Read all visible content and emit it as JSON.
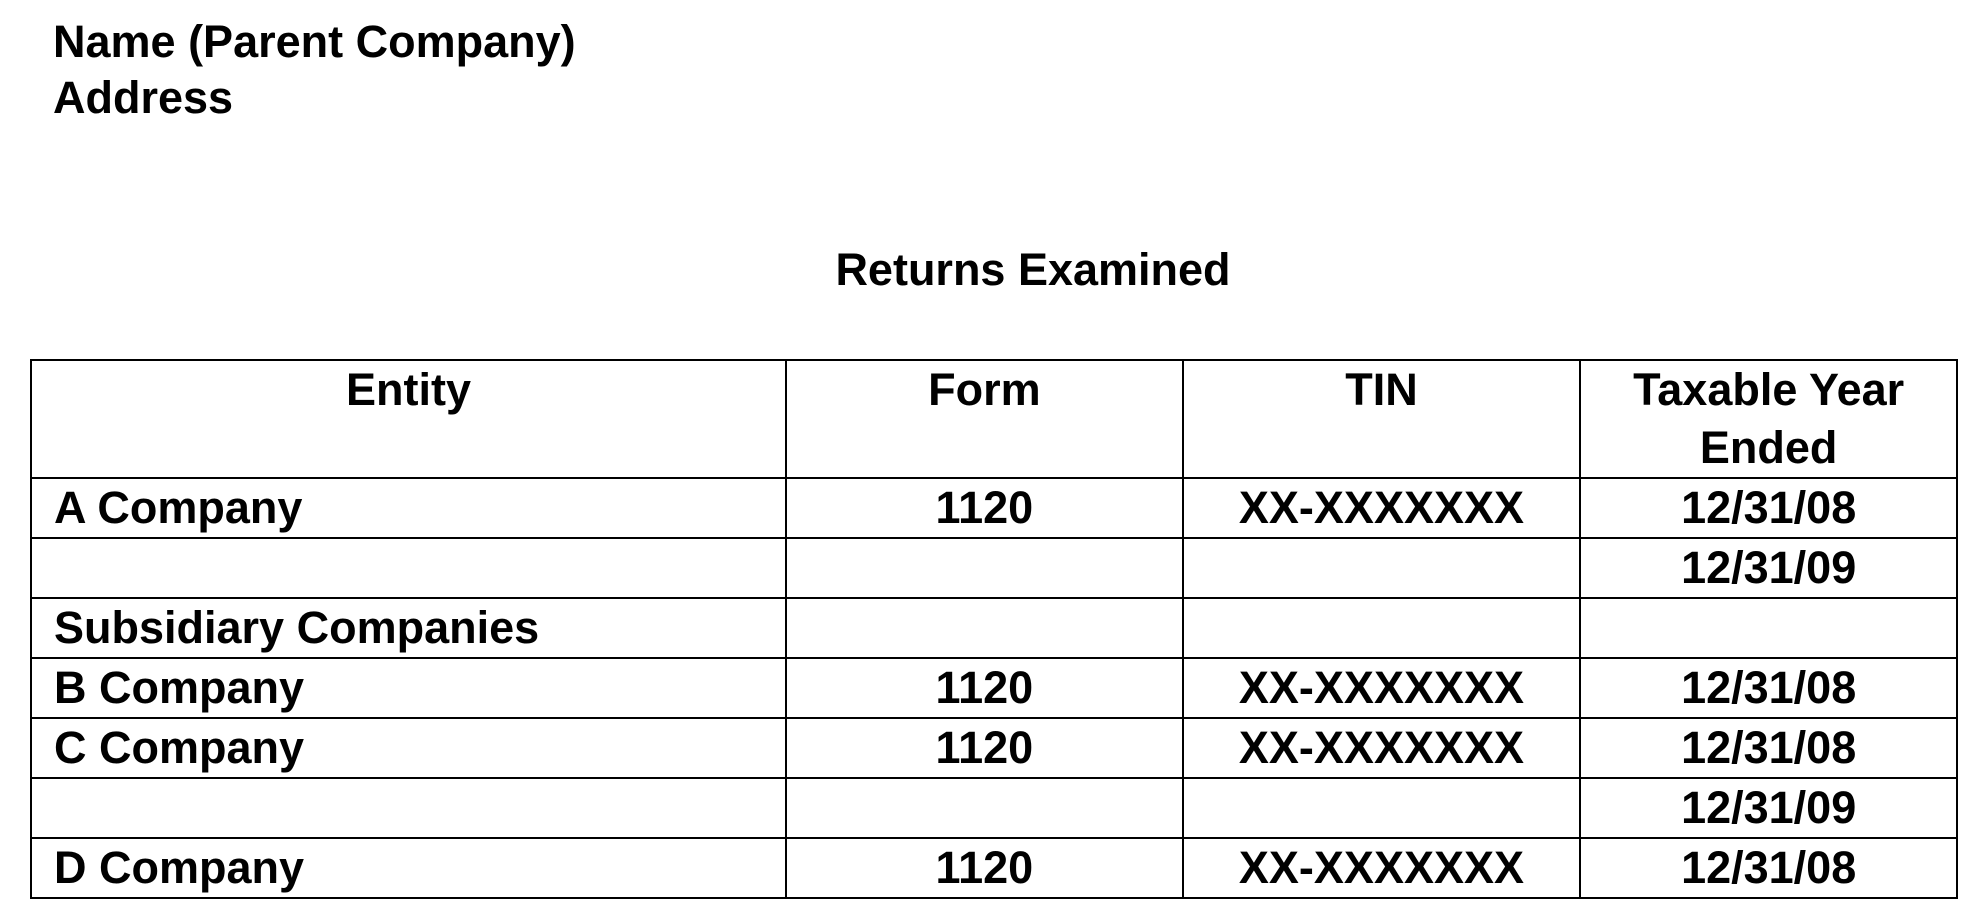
{
  "header": {
    "name": "Name (Parent Company)",
    "address": "Address"
  },
  "title": "Returns Examined",
  "table": {
    "columns": [
      "Entity",
      "Form",
      "TIN",
      "Taxable Year Ended"
    ],
    "rows": [
      [
        "A Company",
        "1120",
        "XX-XXXXXXX",
        "12/31/08"
      ],
      [
        "",
        "",
        "",
        "12/31/09"
      ],
      [
        "Subsidiary Companies",
        "",
        "",
        ""
      ],
      [
        "B Company",
        "1120",
        "XX-XXXXXXX",
        "12/31/08"
      ],
      [
        "C Company",
        "1120",
        "XX-XXXXXXX",
        "12/31/08"
      ],
      [
        "",
        "",
        "",
        "12/31/09"
      ],
      [
        "D Company",
        "1120",
        "XX-XXXXXXX",
        "12/31/08"
      ]
    ]
  }
}
